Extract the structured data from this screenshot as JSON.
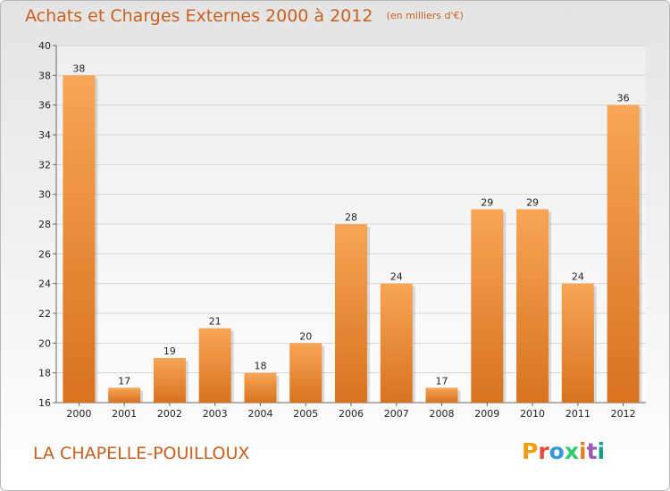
{
  "header": {
    "title": "Achats et Charges Externes 2000 à 2012",
    "unit": "(en milliers d'€)"
  },
  "footer": {
    "commune": "LA CHAPELLE-POUILLOUX",
    "logo": "Proxiti",
    "logo_colors": [
      "#f39c12",
      "#e74c3c",
      "#3498db",
      "#2ecc71",
      "#e67e22",
      "#9b59b6",
      "#16a085"
    ]
  },
  "colors": {
    "bar_top": "#f7a556",
    "bar_bottom": "#d8731f",
    "accent": "#c8601f"
  },
  "chart_data": {
    "type": "bar",
    "title": "Achats et Charges Externes 2000 à 2012",
    "subtitle": "(en milliers d'€)",
    "categories": [
      "2000",
      "2001",
      "2002",
      "2003",
      "2004",
      "2005",
      "2006",
      "2007",
      "2008",
      "2009",
      "2010",
      "2011",
      "2012"
    ],
    "values": [
      38,
      17,
      19,
      21,
      18,
      20,
      28,
      24,
      17,
      29,
      29,
      24,
      36
    ],
    "value_labels": [
      "38",
      "17",
      "19",
      "21",
      "18",
      "20",
      "28",
      "24",
      "17",
      "29",
      "29",
      "24",
      "36"
    ],
    "ylim": [
      16,
      40
    ],
    "yticks": [
      16,
      18,
      20,
      22,
      24,
      26,
      28,
      30,
      32,
      34,
      36,
      38,
      40
    ],
    "ytick_labels": [
      "16",
      "18",
      "20",
      "22",
      "24",
      "26",
      "28",
      "30",
      "32",
      "34",
      "36",
      "38",
      "40"
    ],
    "grid": true
  }
}
